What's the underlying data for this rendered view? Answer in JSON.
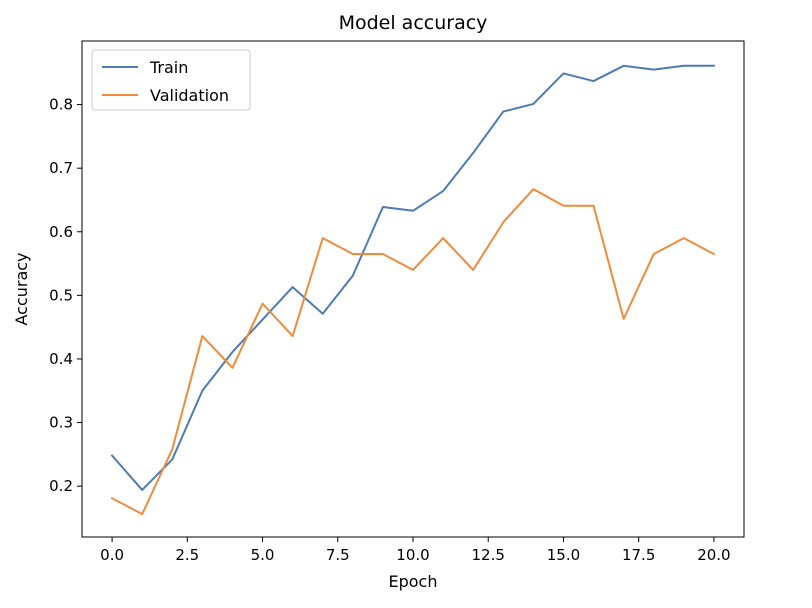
{
  "chart_data": {
    "type": "line",
    "title": "Model accuracy",
    "xlabel": "Epoch",
    "ylabel": "Accuracy",
    "xlim": [
      -1.0,
      21.0
    ],
    "ylim": [
      0.12,
      0.9
    ],
    "xticks": [
      0.0,
      2.5,
      5.0,
      7.5,
      10.0,
      12.5,
      15.0,
      17.5,
      20.0
    ],
    "xtick_labels": [
      "0.0",
      "2.5",
      "5.0",
      "7.5",
      "10.0",
      "12.5",
      "15.0",
      "17.5",
      "20.0"
    ],
    "yticks": [
      0.2,
      0.3,
      0.4,
      0.5,
      0.6,
      0.7,
      0.8
    ],
    "ytick_labels": [
      "0.2",
      "0.3",
      "0.4",
      "0.5",
      "0.6",
      "0.7",
      "0.8"
    ],
    "grid": false,
    "legend_position": "upper-left",
    "x": [
      0,
      1,
      2,
      3,
      4,
      5,
      6,
      7,
      8,
      9,
      10,
      11,
      12,
      13,
      14,
      15,
      16,
      17,
      18,
      19,
      20
    ],
    "series": [
      {
        "name": "Train",
        "color": "#4e7ab5",
        "values": [
          0.248,
          0.194,
          0.242,
          0.35,
          0.411,
          0.462,
          0.513,
          0.471,
          0.531,
          0.639,
          0.633,
          0.664,
          0.724,
          0.789,
          0.801,
          0.849,
          0.837,
          0.861,
          0.855,
          0.861,
          0.861
        ]
      },
      {
        "name": "Validation",
        "color": "#ef8b3b",
        "values": [
          0.181,
          0.156,
          0.258,
          0.436,
          0.386,
          0.487,
          0.436,
          0.59,
          0.565,
          0.565,
          0.54,
          0.59,
          0.54,
          0.615,
          0.667,
          0.641,
          0.641,
          0.463,
          0.565,
          0.59,
          0.565
        ]
      }
    ]
  }
}
